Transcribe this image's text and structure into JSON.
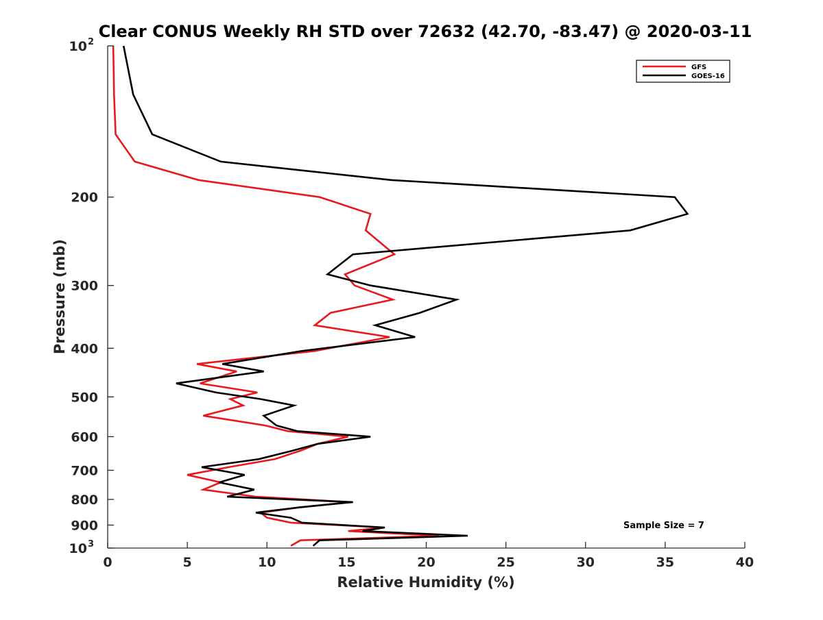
{
  "chart_data": {
    "type": "line",
    "title": "Clear CONUS Weekly RH STD over 72632 (42.70, -83.47) @ 2020-03-11",
    "xlabel": "Relative Humidity (%)",
    "ylabel": "Pressure (mb)",
    "xlim": [
      0,
      40
    ],
    "ylim": [
      100,
      1000
    ],
    "yscale": "log",
    "yaxis_reversed": true,
    "grid": false,
    "x_ticks": [
      "0",
      "5",
      "10",
      "15",
      "20",
      "25",
      "30",
      "35",
      "40"
    ],
    "x_tick_values": [
      0,
      5,
      10,
      15,
      20,
      25,
      30,
      35,
      40
    ],
    "y_ticks": [
      {
        "value": 100,
        "base": "10",
        "exp": "2"
      },
      {
        "value": 200,
        "label": "200"
      },
      {
        "value": 300,
        "label": "300"
      },
      {
        "value": 400,
        "label": "400"
      },
      {
        "value": 500,
        "label": "500"
      },
      {
        "value": 600,
        "label": "600"
      },
      {
        "value": 700,
        "label": "700"
      },
      {
        "value": 800,
        "label": "800"
      },
      {
        "value": 900,
        "label": "900"
      },
      {
        "value": 1000,
        "base": "10",
        "exp": "3"
      }
    ],
    "legend_position": "top-right",
    "annotation": "Sample Size = 7",
    "series": [
      {
        "name": "GFS",
        "color": "#e8191c",
        "points": [
          [
            0.35,
            100
          ],
          [
            0.4,
            125
          ],
          [
            0.5,
            150
          ],
          [
            1.7,
            170
          ],
          [
            5.7,
            185
          ],
          [
            13.3,
            200
          ],
          [
            16.5,
            216
          ],
          [
            16.2,
            233
          ],
          [
            18.0,
            260
          ],
          [
            14.9,
            285
          ],
          [
            15.5,
            300
          ],
          [
            17.9,
            320
          ],
          [
            14.0,
            340
          ],
          [
            13.0,
            360
          ],
          [
            17.7,
            380
          ],
          [
            13.0,
            405
          ],
          [
            5.6,
            430
          ],
          [
            8.1,
            445
          ],
          [
            5.8,
            470
          ],
          [
            9.4,
            490
          ],
          [
            7.7,
            505
          ],
          [
            8.5,
            520
          ],
          [
            6.0,
            545
          ],
          [
            9.9,
            570
          ],
          [
            11.3,
            585
          ],
          [
            15.1,
            600
          ],
          [
            13.2,
            620
          ],
          [
            12.1,
            640
          ],
          [
            10.5,
            665
          ],
          [
            7.6,
            690
          ],
          [
            5.0,
            715
          ],
          [
            7.1,
            740
          ],
          [
            6.0,
            765
          ],
          [
            9.3,
            790
          ],
          [
            15.2,
            810
          ],
          [
            12.0,
            830
          ],
          [
            9.6,
            850
          ],
          [
            10.0,
            870
          ],
          [
            11.5,
            890
          ],
          [
            17.3,
            910
          ],
          [
            15.1,
            925
          ],
          [
            20.8,
            945
          ],
          [
            12.1,
            965
          ],
          [
            11.5,
            990
          ]
        ]
      },
      {
        "name": "GOES-16",
        "color": "#000000",
        "points": [
          [
            1.0,
            100
          ],
          [
            1.6,
            125
          ],
          [
            2.8,
            150
          ],
          [
            7.1,
            170
          ],
          [
            17.8,
            185
          ],
          [
            35.6,
            200
          ],
          [
            36.4,
            216
          ],
          [
            32.8,
            233
          ],
          [
            15.4,
            260
          ],
          [
            13.8,
            285
          ],
          [
            16.5,
            300
          ],
          [
            21.9,
            320
          ],
          [
            19.6,
            340
          ],
          [
            16.8,
            360
          ],
          [
            19.3,
            380
          ],
          [
            12.2,
            405
          ],
          [
            7.2,
            430
          ],
          [
            9.8,
            445
          ],
          [
            4.3,
            470
          ],
          [
            6.8,
            490
          ],
          [
            9.6,
            505
          ],
          [
            11.7,
            520
          ],
          [
            9.8,
            545
          ],
          [
            10.6,
            570
          ],
          [
            11.9,
            585
          ],
          [
            16.5,
            600
          ],
          [
            13.2,
            620
          ],
          [
            11.6,
            640
          ],
          [
            9.5,
            665
          ],
          [
            5.9,
            690
          ],
          [
            8.6,
            715
          ],
          [
            7.0,
            740
          ],
          [
            9.2,
            765
          ],
          [
            7.5,
            790
          ],
          [
            15.4,
            810
          ],
          [
            12.0,
            830
          ],
          [
            9.3,
            850
          ],
          [
            11.5,
            870
          ],
          [
            12.2,
            890
          ],
          [
            17.4,
            910
          ],
          [
            16.0,
            925
          ],
          [
            22.6,
            945
          ],
          [
            13.3,
            965
          ],
          [
            12.9,
            990
          ]
        ]
      }
    ]
  }
}
